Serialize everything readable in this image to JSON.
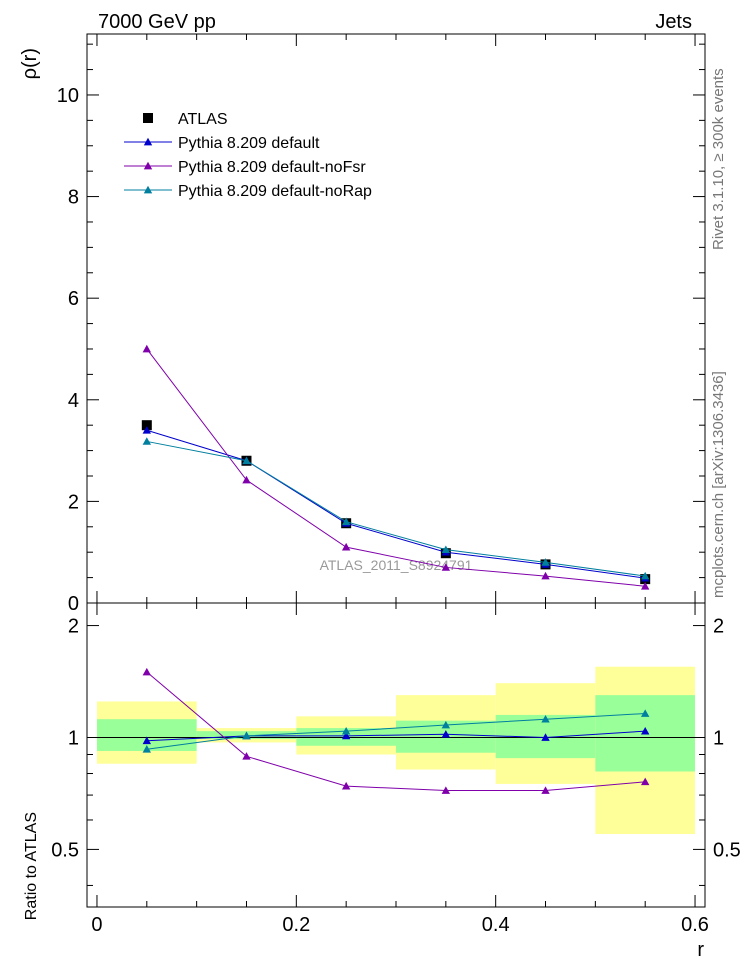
{
  "header": {
    "left": "7000 GeV pp",
    "right": "Jets"
  },
  "side_labels": {
    "rivet": "Rivet 3.1.10, ≥ 300k events",
    "mcplots": "mcplots.cern.ch [arXiv:1306.3436]"
  },
  "chart_data": {
    "type": "line",
    "analysis_label": "ATLAS_2011_S8924791",
    "x": [
      0.05,
      0.15,
      0.25,
      0.35,
      0.45,
      0.55
    ],
    "xlim": [
      -0.01,
      0.61
    ],
    "xlabel": "r",
    "x_ticks": [
      "0",
      "0.2",
      "0.4",
      "0.6"
    ],
    "main": {
      "ylabel": "ρ(r)",
      "ylim": [
        0,
        11.2
      ],
      "y_ticks": [
        "0",
        "2",
        "4",
        "6",
        "8",
        "10"
      ],
      "series": [
        {
          "name": "ATLAS",
          "color": "#000000",
          "marker": "square",
          "values": [
            3.5,
            2.8,
            1.57,
            0.98,
            0.76,
            0.47
          ]
        },
        {
          "name": "Pythia 8.209 default",
          "color": "#0000cc",
          "marker": "triangle",
          "values": [
            3.4,
            2.8,
            1.57,
            1.0,
            0.76,
            0.49
          ]
        },
        {
          "name": "Pythia 8.209 default-noFsr",
          "color": "#7f00aa",
          "marker": "triangle",
          "values": [
            5.0,
            2.42,
            1.1,
            0.7,
            0.53,
            0.33
          ]
        },
        {
          "name": "Pythia 8.209 default-noRap",
          "color": "#007f9f",
          "marker": "triangle",
          "values": [
            3.18,
            2.8,
            1.6,
            1.05,
            0.8,
            0.53
          ]
        }
      ]
    },
    "ratio": {
      "ylabel": "Ratio to ATLAS",
      "ylim": [
        0.35,
        2.3
      ],
      "y_ticks": [
        "0.5",
        "1",
        "2"
      ],
      "bands": {
        "bins": [
          [
            0.0,
            0.1
          ],
          [
            0.1,
            0.2
          ],
          [
            0.2,
            0.3
          ],
          [
            0.3,
            0.4
          ],
          [
            0.4,
            0.5
          ],
          [
            0.5,
            0.6
          ]
        ],
        "stat_low": [
          0.92,
          0.99,
          0.95,
          0.91,
          0.88,
          0.81
        ],
        "stat_high": [
          1.12,
          1.04,
          1.06,
          1.11,
          1.15,
          1.3
        ],
        "total_low": [
          0.85,
          0.97,
          0.9,
          0.82,
          0.75,
          0.55
        ],
        "total_high": [
          1.25,
          1.06,
          1.14,
          1.3,
          1.4,
          1.55
        ],
        "stat_color": "#99ff99",
        "total_color": "#ffff99"
      },
      "series": [
        {
          "name": "Pythia 8.209 default",
          "color": "#0000cc",
          "values": [
            0.98,
            1.01,
            1.01,
            1.02,
            1.0,
            1.04
          ]
        },
        {
          "name": "Pythia 8.209 default-noFsr",
          "color": "#7f00aa",
          "values": [
            1.5,
            0.89,
            0.74,
            0.72,
            0.72,
            0.76
          ]
        },
        {
          "name": "Pythia 8.209 default-noRap",
          "color": "#007f9f",
          "values": [
            0.93,
            1.01,
            1.04,
            1.08,
            1.12,
            1.16
          ]
        }
      ]
    }
  }
}
